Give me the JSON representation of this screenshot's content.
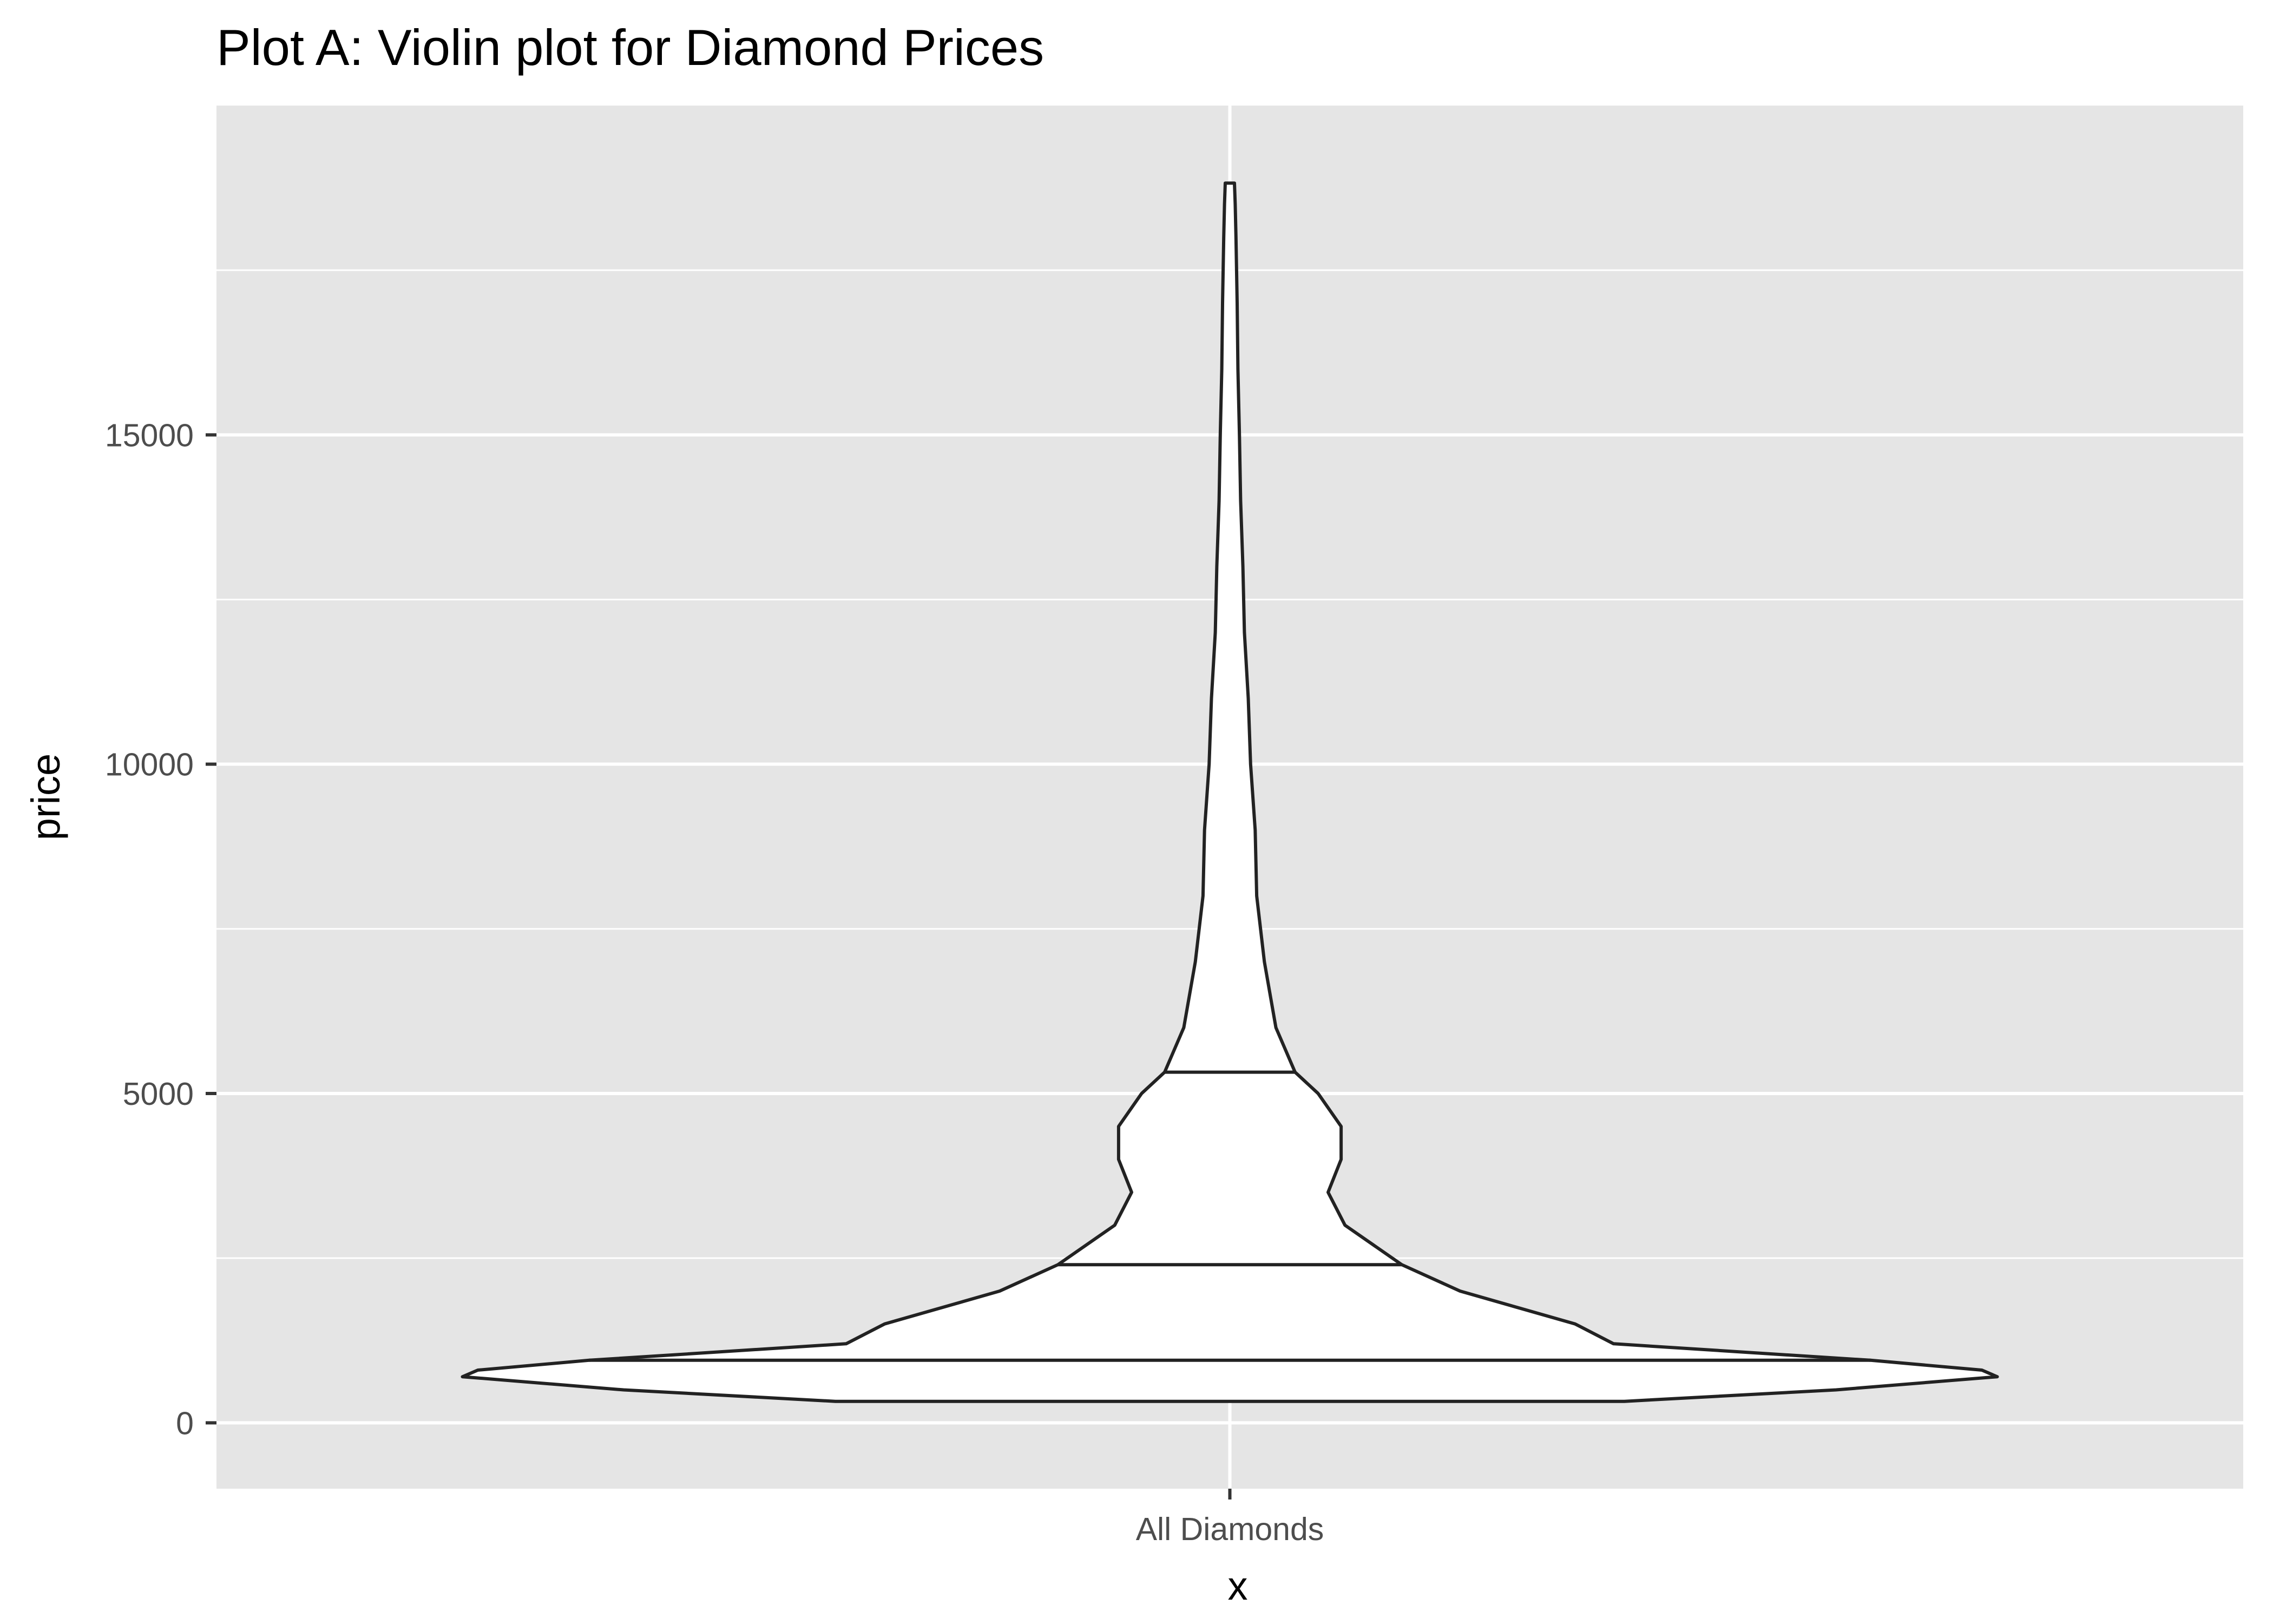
{
  "chart_data": {
    "type": "violin",
    "title": "Plot A: Violin plot for Diamond Prices",
    "xlabel": "x",
    "ylabel": "price",
    "categories": [
      "All Diamonds"
    ],
    "ylim": [
      -1000,
      20000
    ],
    "yticks": [
      0,
      5000,
      10000,
      15000
    ],
    "ytick_labels": [
      "0",
      "5000",
      "10000",
      "15000"
    ],
    "grid": true,
    "panel_background": "#e5e5e5",
    "grid_color": "#ffffff",
    "violin_fill": "#ffffff",
    "outline_color": "#222222",
    "quantiles": [
      0.25,
      0.5,
      0.75
    ],
    "quantile_values": [
      950,
      2401,
      5324
    ],
    "density_profile": [
      {
        "y": 326,
        "w": 0.514
      },
      {
        "y": 500,
        "w": 0.79
      },
      {
        "y": 700,
        "w": 1.0
      },
      {
        "y": 800,
        "w": 0.98
      },
      {
        "y": 950,
        "w": 0.835
      },
      {
        "y": 1200,
        "w": 0.5
      },
      {
        "y": 1500,
        "w": 0.45
      },
      {
        "y": 2000,
        "w": 0.3
      },
      {
        "y": 2401,
        "w": 0.224
      },
      {
        "y": 3000,
        "w": 0.15
      },
      {
        "y": 3500,
        "w": 0.128
      },
      {
        "y": 4000,
        "w": 0.145
      },
      {
        "y": 4500,
        "w": 0.145
      },
      {
        "y": 5000,
        "w": 0.115
      },
      {
        "y": 5324,
        "w": 0.085
      },
      {
        "y": 6000,
        "w": 0.06
      },
      {
        "y": 7000,
        "w": 0.045
      },
      {
        "y": 8000,
        "w": 0.035
      },
      {
        "y": 9000,
        "w": 0.033
      },
      {
        "y": 10000,
        "w": 0.027
      },
      {
        "y": 11000,
        "w": 0.024
      },
      {
        "y": 12000,
        "w": 0.019
      },
      {
        "y": 13000,
        "w": 0.017
      },
      {
        "y": 14000,
        "w": 0.014
      },
      {
        "y": 15000,
        "w": 0.0125
      },
      {
        "y": 16000,
        "w": 0.0105
      },
      {
        "y": 17000,
        "w": 0.0095
      },
      {
        "y": 18000,
        "w": 0.008
      },
      {
        "y": 18500,
        "w": 0.007
      },
      {
        "y": 18823,
        "w": 0.006
      }
    ]
  }
}
